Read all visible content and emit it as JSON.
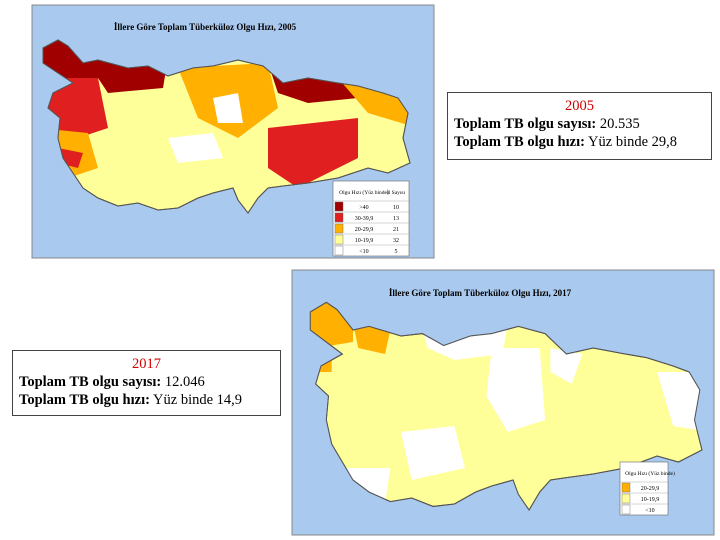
{
  "map_2005": {
    "title": "İllere Göre Toplam Tüberküloz Olgu Hızı, 2005",
    "legend": {
      "header": [
        "Olgu Hızı (Yüz binde)",
        "İl Sayısı"
      ],
      "rows": [
        [
          ">40",
          "10"
        ],
        [
          "30-39,9",
          "13"
        ],
        [
          "20-29,9",
          "21"
        ],
        [
          "10-19,9",
          "32"
        ],
        [
          "<10",
          "5"
        ]
      ]
    }
  },
  "map_2017": {
    "title": "İllere Göre Toplam Tüberküloz Olgu Hızı, 2017",
    "legend": {
      "header": [
        "Olgu Hızı (Yüz binde)"
      ],
      "rows": [
        [
          "20-29,9"
        ],
        [
          "10-19,9"
        ],
        [
          "<10"
        ]
      ]
    }
  },
  "box_2005": {
    "year": "2005",
    "count_label": "Toplam TB olgu sayısı:",
    "count_value": "20.535",
    "rate_label": "Toplam TB olgu hızı:",
    "rate_value": "Yüz binde 29,8"
  },
  "box_2017": {
    "year": "2017",
    "count_label": "Toplam TB olgu sayısı:",
    "count_value": "12.046",
    "rate_label": "Toplam TB olgu hızı:",
    "rate_value": "Yüz binde 14,9"
  }
}
